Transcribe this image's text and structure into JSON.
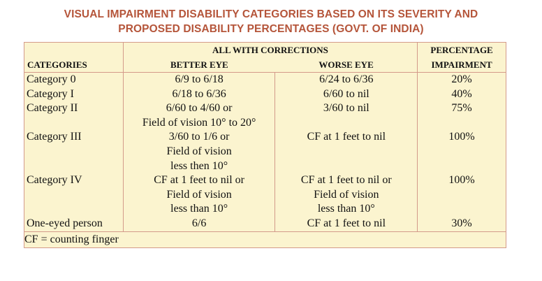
{
  "title": {
    "line1": "VISUAL IMPAIRMENT DISABILITY CATEGORIES BASED ON ITS SEVERITY AND",
    "line2": "PROPOSED DISABILITY PERCENTAGES (GOVT. OF INDIA)"
  },
  "table": {
    "header": {
      "categories": "CATEGORIES",
      "group": "ALL WITH CORRECTIONS",
      "better_eye": "BETTER EYE",
      "worse_eye": "WORSE EYE",
      "percentage_line1": "PERCENTAGE",
      "percentage_line2": "IMPAIRMENT"
    },
    "rows": [
      {
        "category": "Category 0",
        "better": [
          "6/9 to 6/18"
        ],
        "worse": [
          "6/24 to 6/36"
        ],
        "percentage": "20%"
      },
      {
        "category": "Category I",
        "better": [
          "6/18 to 6/36"
        ],
        "worse": [
          "6/60 to nil"
        ],
        "percentage": "40%"
      },
      {
        "category": "Category II",
        "better": [
          "6/60 to 4/60 or",
          "Field of vision 10° to 20°"
        ],
        "worse": [
          "3/60 to nil"
        ],
        "percentage": "75%"
      },
      {
        "category": "Category III",
        "better": [
          "3/60 to 1/6 or",
          "Field of vision",
          "less then 10°"
        ],
        "worse": [
          "CF at 1 feet to nil"
        ],
        "percentage": "100%"
      },
      {
        "category": "Category IV",
        "better": [
          "CF at 1 feet to nil or",
          "Field of vision",
          "less than 10°"
        ],
        "worse": [
          "CF at 1 feet to nil or",
          "Field of vision",
          "less than 10°"
        ],
        "percentage": "100%"
      },
      {
        "category": "One-eyed person",
        "better": [
          "6/6"
        ],
        "worse": [
          "CF at 1 feet to nil"
        ],
        "percentage": "30%"
      }
    ],
    "footnote": "CF = counting finger"
  },
  "colors": {
    "title": "#b5553a",
    "table_background": "#fbf4cf",
    "border": "#d39a8a"
  }
}
